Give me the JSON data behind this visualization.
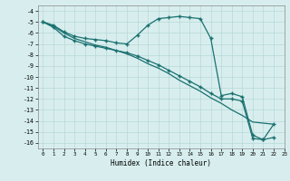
{
  "xlabel": "Humidex (Indice chaleur)",
  "background_color": "#d8eeee",
  "grid_color": "#b8d8d8",
  "line_color": "#1a7070",
  "xlim": [
    -0.5,
    23
  ],
  "ylim": [
    -16.5,
    -3.5
  ],
  "xtick_labels": [
    "0",
    "1",
    "2",
    "3",
    "4",
    "5",
    "6",
    "7",
    "8",
    "9",
    "10",
    "11",
    "12",
    "13",
    "14",
    "15",
    "16",
    "17",
    "18",
    "19",
    "20",
    "21",
    "22",
    "23"
  ],
  "yticks": [
    -4,
    -5,
    -6,
    -7,
    -8,
    -9,
    -10,
    -11,
    -12,
    -13,
    -14,
    -15,
    -16
  ],
  "line1_x": [
    0,
    1,
    2,
    3,
    4,
    5,
    6,
    7,
    8,
    9,
    10,
    11,
    12,
    13,
    14,
    15,
    16,
    17,
    18,
    19,
    20,
    21,
    22
  ],
  "line1_y": [
    -5.0,
    -5.3,
    -5.9,
    -6.3,
    -6.5,
    -6.6,
    -6.7,
    -6.9,
    -7.0,
    -6.2,
    -5.3,
    -4.7,
    -4.6,
    -4.5,
    -4.6,
    -4.7,
    -6.5,
    -11.7,
    -11.5,
    -11.8,
    -15.3,
    -15.7,
    -15.5
  ],
  "line2_x": [
    0,
    1,
    2,
    3,
    4,
    5,
    6,
    7,
    8,
    9,
    10,
    11,
    12,
    13,
    14,
    15,
    16,
    17,
    18,
    19,
    20,
    21,
    22
  ],
  "line2_y": [
    -5.0,
    -5.5,
    -6.3,
    -6.7,
    -7.0,
    -7.2,
    -7.4,
    -7.6,
    -7.8,
    -8.1,
    -8.5,
    -8.9,
    -9.4,
    -9.9,
    -10.4,
    -10.9,
    -11.5,
    -12.0,
    -12.0,
    -12.2,
    -15.6,
    -15.7,
    -14.3
  ],
  "line3_x": [
    0,
    1,
    2,
    3,
    4,
    5,
    6,
    7,
    8,
    9,
    10,
    11,
    12,
    13,
    14,
    15,
    16,
    17,
    18,
    19,
    20,
    21,
    22
  ],
  "line3_y": [
    -5.0,
    -5.4,
    -6.0,
    -6.5,
    -6.8,
    -7.1,
    -7.3,
    -7.6,
    -7.9,
    -8.3,
    -8.8,
    -9.2,
    -9.7,
    -10.3,
    -10.8,
    -11.3,
    -11.9,
    -12.4,
    -13.0,
    -13.5,
    -14.1,
    -14.2,
    -14.3
  ],
  "marker": "+",
  "markersize": 3,
  "linewidth": 0.9
}
